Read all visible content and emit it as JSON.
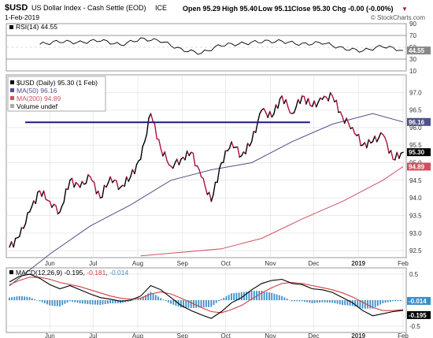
{
  "header": {
    "symbol": "$USD",
    "name": "US Dollar Index - Cash Settle (EOD)",
    "exchange": "ICE",
    "date": "1-Feb-2019",
    "watermark": "© StockCharts.com",
    "quote": {
      "open": "Open 95.29",
      "high": "High 95.40",
      "low": "Low 95.11",
      "close": "Close 95.30",
      "chg": "Chg -0.00 (-0.00%)"
    }
  },
  "colors": {
    "up": "#000000",
    "down": "#b0103a",
    "ma50": "#50508a",
    "ma200": "#d05060",
    "hline": "#1c1c7a",
    "macd": "#000000",
    "signal": "#d04040",
    "hist": "#3b8fc8",
    "grid": "#dddddd",
    "frame": "#999999",
    "tag": "#888888"
  },
  "chart_data": [
    {
      "type": "line",
      "panel": "rsi",
      "legend": "RSI(14) 44.55",
      "y_ticks": [
        "90",
        "70",
        "50",
        "30",
        "10"
      ],
      "ref_lines": [
        70,
        30
      ],
      "ylim": [
        10,
        90
      ],
      "current_tag": "44.55",
      "x": [
        "2018-05-25",
        "2018-06-08",
        "2018-06-22",
        "2018-07-06",
        "2018-07-20",
        "2018-08-03",
        "2018-08-17",
        "2018-08-31",
        "2018-09-14",
        "2018-09-28",
        "2018-10-12",
        "2018-10-26",
        "2018-11-09",
        "2018-11-23",
        "2018-12-07",
        "2018-12-21",
        "2019-01-04",
        "2019-01-18",
        "2019-02-01"
      ],
      "values": [
        55,
        60,
        58,
        62,
        54,
        64,
        61,
        46,
        40,
        54,
        56,
        60,
        60,
        55,
        58,
        48,
        44,
        52,
        44.55
      ]
    },
    {
      "type": "line",
      "panel": "price",
      "legend": [
        "$USD (Daily) 95.30 (1 Feb)",
        "MA(50) 96.16",
        "MA(200) 94.89",
        "Volume undef"
      ],
      "y_ticks": [
        "97.0",
        "96.5",
        "96.0",
        "95.5",
        "95.0",
        "94.5",
        "94.0",
        "93.5",
        "93.0",
        "92.5"
      ],
      "ylim": [
        92.3,
        97.5
      ],
      "tags": [
        "96.16",
        "95.30",
        "94.89"
      ],
      "horizontal_line": {
        "y": 96.15,
        "from": "2018-05-04",
        "to": "2018-11-23"
      },
      "series": [
        {
          "role": "price",
          "x": [
            "2018-05-04",
            "2018-05-11",
            "2018-05-18",
            "2018-05-25",
            "2018-06-01",
            "2018-06-08",
            "2018-06-15",
            "2018-06-22",
            "2018-06-29",
            "2018-07-06",
            "2018-07-13",
            "2018-07-20",
            "2018-07-27",
            "2018-08-03",
            "2018-08-10",
            "2018-08-17",
            "2018-08-24",
            "2018-08-31",
            "2018-09-07",
            "2018-09-14",
            "2018-09-21",
            "2018-09-28",
            "2018-10-05",
            "2018-10-12",
            "2018-10-19",
            "2018-10-26",
            "2018-11-02",
            "2018-11-09",
            "2018-11-16",
            "2018-11-23",
            "2018-11-30",
            "2018-12-07",
            "2018-12-14",
            "2018-12-21",
            "2018-12-28",
            "2019-01-04",
            "2019-01-11",
            "2019-01-18",
            "2019-01-25",
            "2019-02-01"
          ],
          "values": [
            92.6,
            92.9,
            93.6,
            94.2,
            93.9,
            93.6,
            94.5,
            94.3,
            94.6,
            94.0,
            94.6,
            94.3,
            94.6,
            95.1,
            96.4,
            95.4,
            94.9,
            95.1,
            95.3,
            94.6,
            93.9,
            95.0,
            95.6,
            95.2,
            95.6,
            96.5,
            96.3,
            96.9,
            96.4,
            96.9,
            96.6,
            96.8,
            96.9,
            96.3,
            96.0,
            95.5,
            95.6,
            95.8,
            95.1,
            95.3
          ]
        },
        {
          "role": "ma50",
          "name": "MA(50) 96.16",
          "x": [
            "2018-05-04",
            "2018-06-01",
            "2018-06-29",
            "2018-07-27",
            "2018-08-24",
            "2018-09-21",
            "2018-10-19",
            "2018-11-16",
            "2018-12-14",
            "2019-01-11",
            "2019-02-01"
          ],
          "values": [
            91.5,
            92.4,
            93.2,
            93.8,
            94.5,
            94.8,
            95.0,
            95.6,
            96.1,
            96.4,
            96.16
          ]
        },
        {
          "role": "ma200",
          "name": "MA(200) 94.89",
          "x": [
            "2018-08-03",
            "2018-08-31",
            "2018-09-28",
            "2018-10-26",
            "2018-11-23",
            "2018-12-21",
            "2019-01-18",
            "2019-02-01"
          ],
          "values": [
            92.35,
            92.45,
            92.55,
            92.85,
            93.4,
            93.9,
            94.5,
            94.89
          ]
        }
      ],
      "x_ticks": [
        {
          "x": "2018-06-01",
          "label": "Jun"
        },
        {
          "x": "2018-07-01",
          "label": "Jul"
        },
        {
          "x": "2018-08-01",
          "label": "Aug"
        },
        {
          "x": "2018-09-01",
          "label": "Sep"
        },
        {
          "x": "2018-10-01",
          "label": "Oct"
        },
        {
          "x": "2018-11-01",
          "label": "Nov"
        },
        {
          "x": "2018-12-01",
          "label": "Dec"
        },
        {
          "x": "2019-01-01",
          "label": "2019"
        },
        {
          "x": "2019-02-01",
          "label": "Feb"
        }
      ]
    },
    {
      "type": "line",
      "panel": "macd",
      "legend": {
        "label": "MACD(12,26,9)",
        "macd": "-0.195",
        "signal": "-0.181",
        "hist": "-0.014"
      },
      "y_ticks": [
        "0.5",
        "0.0",
        "-0.5"
      ],
      "ylim": [
        -0.62,
        0.62
      ],
      "tags": [
        "-0.014",
        "-0.195"
      ],
      "x": [
        "2018-05-04",
        "2018-05-11",
        "2018-05-18",
        "2018-05-25",
        "2018-06-01",
        "2018-06-08",
        "2018-06-15",
        "2018-06-22",
        "2018-06-29",
        "2018-07-06",
        "2018-07-13",
        "2018-07-20",
        "2018-07-27",
        "2018-08-03",
        "2018-08-10",
        "2018-08-17",
        "2018-08-24",
        "2018-08-31",
        "2018-09-07",
        "2018-09-14",
        "2018-09-21",
        "2018-09-28",
        "2018-10-05",
        "2018-10-12",
        "2018-10-19",
        "2018-10-26",
        "2018-11-02",
        "2018-11-09",
        "2018-11-16",
        "2018-11-23",
        "2018-11-30",
        "2018-12-07",
        "2018-12-14",
        "2018-12-21",
        "2018-12-28",
        "2019-01-04",
        "2019-01-11",
        "2019-01-18",
        "2019-01-25",
        "2019-02-01"
      ],
      "series": [
        {
          "role": "macd",
          "values": [
            0.35,
            0.46,
            0.5,
            0.42,
            0.3,
            0.22,
            0.28,
            0.2,
            0.12,
            0.05,
            0.02,
            -0.02,
            0.0,
            0.08,
            0.28,
            0.2,
            0.05,
            -0.1,
            -0.2,
            -0.28,
            -0.35,
            -0.22,
            -0.05,
            0.05,
            0.2,
            0.32,
            0.38,
            0.4,
            0.32,
            0.3,
            0.22,
            0.2,
            0.15,
            0.05,
            -0.05,
            -0.2,
            -0.3,
            -0.26,
            -0.22,
            -0.195
          ]
        },
        {
          "role": "signal",
          "values": [
            0.3,
            0.38,
            0.44,
            0.44,
            0.4,
            0.34,
            0.3,
            0.26,
            0.2,
            0.14,
            0.08,
            0.04,
            0.02,
            0.04,
            0.12,
            0.16,
            0.12,
            0.04,
            -0.05,
            -0.14,
            -0.22,
            -0.24,
            -0.18,
            -0.1,
            0.02,
            0.14,
            0.24,
            0.32,
            0.34,
            0.32,
            0.28,
            0.24,
            0.2,
            0.14,
            0.06,
            -0.04,
            -0.14,
            -0.2,
            -0.2,
            -0.181
          ]
        },
        {
          "role": "hist",
          "values": [
            0.05,
            0.08,
            0.06,
            -0.02,
            -0.1,
            -0.12,
            -0.02,
            -0.06,
            -0.08,
            -0.09,
            -0.06,
            -0.06,
            -0.02,
            0.04,
            0.16,
            0.04,
            -0.07,
            -0.14,
            -0.15,
            -0.14,
            -0.13,
            0.02,
            0.13,
            0.15,
            0.18,
            0.18,
            0.14,
            0.08,
            -0.02,
            -0.02,
            -0.06,
            -0.04,
            -0.05,
            -0.09,
            -0.11,
            -0.16,
            -0.16,
            -0.06,
            -0.02,
            -0.014
          ]
        }
      ],
      "x_ticks": [
        {
          "x": "2018-06-01",
          "label": "Jun"
        },
        {
          "x": "2018-07-01",
          "label": "Jul"
        },
        {
          "x": "2018-08-01",
          "label": "Aug"
        },
        {
          "x": "2018-09-01",
          "label": "Sep"
        },
        {
          "x": "2018-10-01",
          "label": "Oct"
        },
        {
          "x": "2018-11-01",
          "label": "Nov"
        },
        {
          "x": "2018-12-01",
          "label": "Dec"
        },
        {
          "x": "2019-01-01",
          "label": "2019"
        },
        {
          "x": "2019-02-01",
          "label": "Feb"
        }
      ]
    }
  ]
}
